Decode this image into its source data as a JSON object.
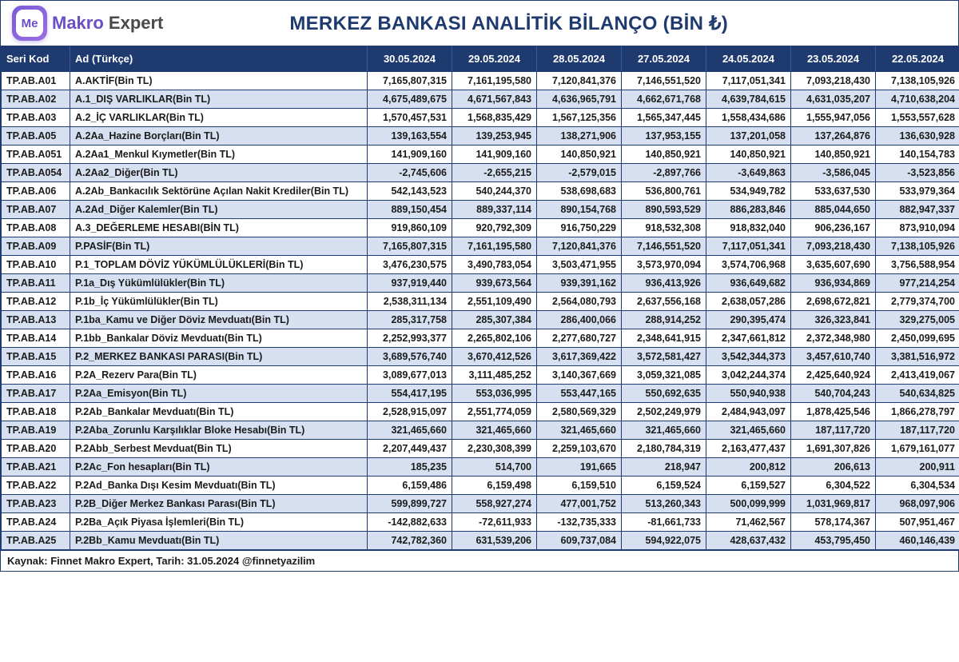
{
  "brand": {
    "badge": "Me",
    "part1": "Makro",
    "part2": " Expert"
  },
  "title": "MERKEZ BANKASI ANALİTİK BİLANÇO (BİN ₺)",
  "colors": {
    "header_bg": "#1f3a6e",
    "header_text": "#ffffff",
    "row_alt_bg": "#d6e0f0",
    "row_bg": "#ffffff",
    "border": "#1f3a6e",
    "title_text": "#1f3a6e",
    "brand_purple": "#6a4fc7"
  },
  "typography": {
    "title_fontsize": 24,
    "header_fontsize": 13,
    "cell_fontsize": 12.5,
    "font_family": "Arial"
  },
  "columns": {
    "code": "Seri Kod",
    "name": "Ad (Türkçe)",
    "dates": [
      "30.05.2024",
      "29.05.2024",
      "28.05.2024",
      "27.05.2024",
      "24.05.2024",
      "23.05.2024",
      "22.05.2024"
    ]
  },
  "rows": [
    {
      "code": "TP.AB.A01",
      "name": "A.AKTİF(Bin TL)",
      "v": [
        "7,165,807,315",
        "7,161,195,580",
        "7,120,841,376",
        "7,146,551,520",
        "7,117,051,341",
        "7,093,218,430",
        "7,138,105,926"
      ]
    },
    {
      "code": "TP.AB.A02",
      "name": "A.1_DIŞ VARLIKLAR(Bin TL)",
      "v": [
        "4,675,489,675",
        "4,671,567,843",
        "4,636,965,791",
        "4,662,671,768",
        "4,639,784,615",
        "4,631,035,207",
        "4,710,638,204"
      ]
    },
    {
      "code": "TP.AB.A03",
      "name": "A.2_İÇ VARLIKLAR(Bin TL)",
      "v": [
        "1,570,457,531",
        "1,568,835,429",
        "1,567,125,356",
        "1,565,347,445",
        "1,558,434,686",
        "1,555,947,056",
        "1,553,557,628"
      ]
    },
    {
      "code": "TP.AB.A05",
      "name": "A.2Aa_Hazine Borçları(Bin TL)",
      "v": [
        "139,163,554",
        "139,253,945",
        "138,271,906",
        "137,953,155",
        "137,201,058",
        "137,264,876",
        "136,630,928"
      ]
    },
    {
      "code": "TP.AB.A051",
      "name": "A.2Aa1_Menkul Kıymetler(Bin TL)",
      "v": [
        "141,909,160",
        "141,909,160",
        "140,850,921",
        "140,850,921",
        "140,850,921",
        "140,850,921",
        "140,154,783"
      ]
    },
    {
      "code": "TP.AB.A054",
      "name": "A.2Aa2_Diğer(Bin TL)",
      "v": [
        "-2,745,606",
        "-2,655,215",
        "-2,579,015",
        "-2,897,766",
        "-3,649,863",
        "-3,586,045",
        "-3,523,856"
      ]
    },
    {
      "code": "TP.AB.A06",
      "name": "A.2Ab_Bankacılık Sektörüne Açılan Nakit Krediler(Bin TL)",
      "v": [
        "542,143,523",
        "540,244,370",
        "538,698,683",
        "536,800,761",
        "534,949,782",
        "533,637,530",
        "533,979,364"
      ]
    },
    {
      "code": "TP.AB.A07",
      "name": "A.2Ad_Diğer Kalemler(Bin TL)",
      "v": [
        "889,150,454",
        "889,337,114",
        "890,154,768",
        "890,593,529",
        "886,283,846",
        "885,044,650",
        "882,947,337"
      ]
    },
    {
      "code": "TP.AB.A08",
      "name": "A.3_DEĞERLEME HESABI(BİN TL)",
      "v": [
        "919,860,109",
        "920,792,309",
        "916,750,229",
        "918,532,308",
        "918,832,040",
        "906,236,167",
        "873,910,094"
      ]
    },
    {
      "code": "TP.AB.A09",
      "name": "P.PASİF(Bin TL)",
      "v": [
        "7,165,807,315",
        "7,161,195,580",
        "7,120,841,376",
        "7,146,551,520",
        "7,117,051,341",
        "7,093,218,430",
        "7,138,105,926"
      ]
    },
    {
      "code": "TP.AB.A10",
      "name": "P.1_TOPLAM DÖVİZ YÜKÜMLÜLÜKLERİ(Bin TL)",
      "v": [
        "3,476,230,575",
        "3,490,783,054",
        "3,503,471,955",
        "3,573,970,094",
        "3,574,706,968",
        "3,635,607,690",
        "3,756,588,954"
      ]
    },
    {
      "code": "TP.AB.A11",
      "name": "P.1a_Dış Yükümlülükler(Bin TL)",
      "v": [
        "937,919,440",
        "939,673,564",
        "939,391,162",
        "936,413,926",
        "936,649,682",
        "936,934,869",
        "977,214,254"
      ]
    },
    {
      "code": "TP.AB.A12",
      "name": "P.1b_İç Yükümlülükler(Bin TL)",
      "v": [
        "2,538,311,134",
        "2,551,109,490",
        "2,564,080,793",
        "2,637,556,168",
        "2,638,057,286",
        "2,698,672,821",
        "2,779,374,700"
      ]
    },
    {
      "code": "TP.AB.A13",
      "name": "P.1ba_Kamu ve Diğer Döviz Mevduatı(Bin TL)",
      "v": [
        "285,317,758",
        "285,307,384",
        "286,400,066",
        "288,914,252",
        "290,395,474",
        "326,323,841",
        "329,275,005"
      ]
    },
    {
      "code": "TP.AB.A14",
      "name": "P.1bb_Bankalar Döviz Mevduatı(Bin TL)",
      "v": [
        "2,252,993,377",
        "2,265,802,106",
        "2,277,680,727",
        "2,348,641,915",
        "2,347,661,812",
        "2,372,348,980",
        "2,450,099,695"
      ]
    },
    {
      "code": "TP.AB.A15",
      "name": "P.2_MERKEZ BANKASI PARASI(Bin TL)",
      "v": [
        "3,689,576,740",
        "3,670,412,526",
        "3,617,369,422",
        "3,572,581,427",
        "3,542,344,373",
        "3,457,610,740",
        "3,381,516,972"
      ]
    },
    {
      "code": "TP.AB.A16",
      "name": "P.2A_Rezerv Para(Bin TL)",
      "v": [
        "3,089,677,013",
        "3,111,485,252",
        "3,140,367,669",
        "3,059,321,085",
        "3,042,244,374",
        "2,425,640,924",
        "2,413,419,067"
      ]
    },
    {
      "code": "TP.AB.A17",
      "name": "P.2Aa_Emisyon(Bin TL)",
      "v": [
        "554,417,195",
        "553,036,995",
        "553,447,165",
        "550,692,635",
        "550,940,938",
        "540,704,243",
        "540,634,825"
      ]
    },
    {
      "code": "TP.AB.A18",
      "name": "P.2Ab_Bankalar Mevduatı(Bin TL)",
      "v": [
        "2,528,915,097",
        "2,551,774,059",
        "2,580,569,329",
        "2,502,249,979",
        "2,484,943,097",
        "1,878,425,546",
        "1,866,278,797"
      ]
    },
    {
      "code": "TP.AB.A19",
      "name": "P.2Aba_Zorunlu Karşılıklar Bloke Hesabı(Bin TL)",
      "v": [
        "321,465,660",
        "321,465,660",
        "321,465,660",
        "321,465,660",
        "321,465,660",
        "187,117,720",
        "187,117,720"
      ]
    },
    {
      "code": "TP.AB.A20",
      "name": "P.2Abb_Serbest Mevduat(Bin TL)",
      "v": [
        "2,207,449,437",
        "2,230,308,399",
        "2,259,103,670",
        "2,180,784,319",
        "2,163,477,437",
        "1,691,307,826",
        "1,679,161,077"
      ]
    },
    {
      "code": "TP.AB.A21",
      "name": "P.2Ac_Fon hesapları(Bin TL)",
      "v": [
        "185,235",
        "514,700",
        "191,665",
        "218,947",
        "200,812",
        "206,613",
        "200,911"
      ]
    },
    {
      "code": "TP.AB.A22",
      "name": "P.2Ad_Banka Dışı Kesim Mevduatı(Bin TL)",
      "v": [
        "6,159,486",
        "6,159,498",
        "6,159,510",
        "6,159,524",
        "6,159,527",
        "6,304,522",
        "6,304,534"
      ]
    },
    {
      "code": "TP.AB.A23",
      "name": "P.2B_Diğer Merkez Bankası Parası(Bin TL)",
      "v": [
        "599,899,727",
        "558,927,274",
        "477,001,752",
        "513,260,343",
        "500,099,999",
        "1,031,969,817",
        "968,097,906"
      ]
    },
    {
      "code": "TP.AB.A24",
      "name": "P.2Ba_Açık Piyasa İşlemleri(Bin TL)",
      "v": [
        "-142,882,633",
        "-72,611,933",
        "-132,735,333",
        "-81,661,733",
        "71,462,567",
        "578,174,367",
        "507,951,467"
      ]
    },
    {
      "code": "TP.AB.A25",
      "name": "P.2Bb_Kamu Mevduatı(Bin TL)",
      "v": [
        "742,782,360",
        "631,539,206",
        "609,737,084",
        "594,922,075",
        "428,637,432",
        "453,795,450",
        "460,146,439"
      ]
    }
  ],
  "footer": "Kaynak: Finnet Makro Expert, Tarih: 31.05.2024 @finnetyazilim"
}
